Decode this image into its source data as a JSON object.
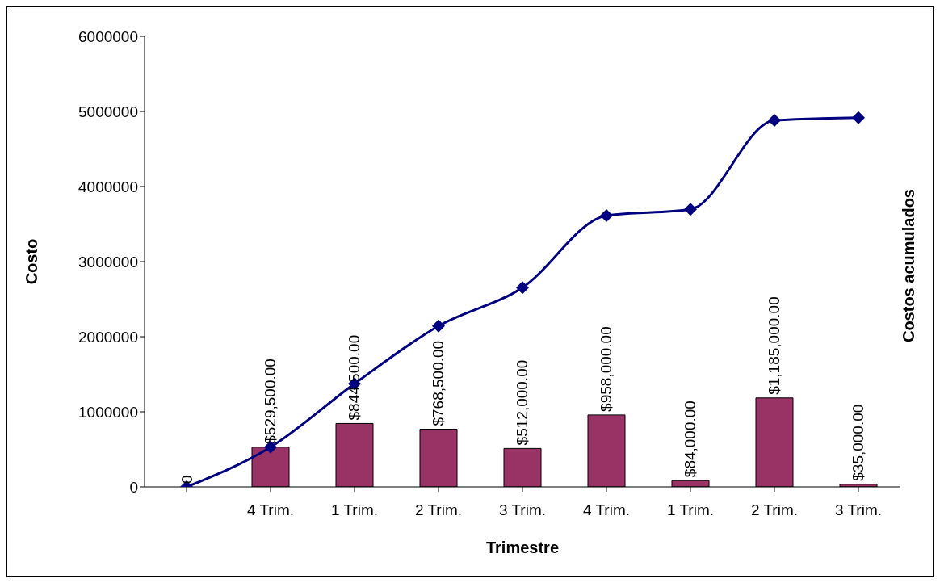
{
  "chart_data": {
    "type": "bar",
    "xlabel": "Trimestre",
    "ylabel": "Costo",
    "y2label": "Costos acumulados",
    "categories": [
      null,
      "4 Trim.",
      "1 Trim.",
      "2 Trim.",
      "3 Trim.",
      "4 Trim.",
      "1 Trim.",
      "2 Trim.",
      "3 Trim."
    ],
    "series": [
      {
        "color": "#993366",
        "values": [
          0,
          529500,
          844500,
          768500,
          512000,
          958000,
          84000,
          1185000,
          35000
        ],
        "value_labels": [
          "0",
          "$529,500.00",
          "$844,500.00",
          "$768,500.00",
          "$512,000.00",
          "$958,000.00",
          "$84,000.00",
          "$1,185,000.00",
          "$35,000.00"
        ]
      },
      {
        "type": "line",
        "color": "#000080",
        "marker": "diamond",
        "values": [
          0,
          529500,
          1374000,
          2142500,
          2654500,
          3612500,
          3696500,
          4881500,
          4916500
        ]
      }
    ],
    "ylim": [
      0,
      6000000
    ],
    "yticks": [
      0,
      1000000,
      2000000,
      3000000,
      4000000,
      5000000,
      6000000
    ],
    "grid": false,
    "legend": false
  }
}
